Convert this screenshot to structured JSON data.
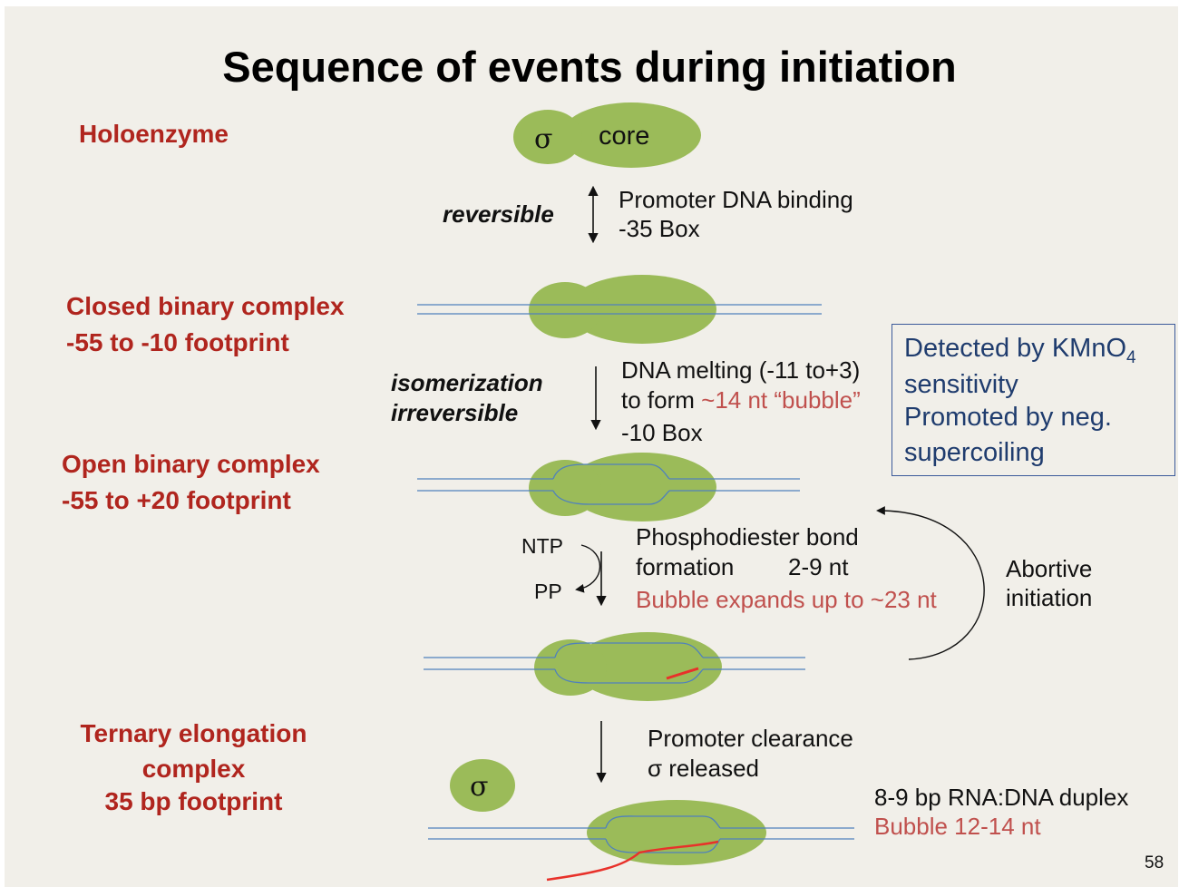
{
  "title": "Sequence of events during initiation",
  "slide_number": "58",
  "stages": {
    "holoenzyme": "Holoenzyme",
    "closed_line1": "Closed binary complex",
    "closed_line2": "-55 to -10 footprint",
    "open_line1": "Open binary complex",
    "open_line2": "-55 to +20 footprint",
    "ternary_line1": "Ternary elongation",
    "ternary_line2": "complex",
    "ternary_line3": "35 bp footprint"
  },
  "enzyme": {
    "sigma": "σ",
    "core": "core",
    "sigma_free": "σ"
  },
  "steps": {
    "step1_side": "reversible",
    "step1_line1": "Promoter DNA binding",
    "step1_line2": "-35 Box",
    "step2_side1": "isomerization",
    "step2_side2": "irreversible",
    "step2_line1": "DNA melting (-11 to+3)",
    "step2_line2a": "to form ",
    "step2_line2b": "~14 nt “bubble”",
    "step2_line3": "-10 Box",
    "ntp": "NTP",
    "pp": "PP",
    "step3_line1": "Phosphodiester bond",
    "step3_line2a": "formation",
    "step3_line2b": "2-9 nt",
    "step3_line3": "Bubble expands up to ~23 nt",
    "abortive_line1": "Abortive",
    "abortive_line2": "initiation",
    "step4_line1": "Promoter clearance",
    "step4_line2": "σ released",
    "duplex": "8-9 bp RNA:DNA duplex",
    "bubble_final": "Bubble 12-14 nt"
  },
  "kmno4_box": {
    "line1": "Detected by KMnO",
    "line1_sub": "4",
    "line2": "sensitivity",
    "line3": "Promoted by neg.",
    "line4": "supercoiling"
  },
  "colors": {
    "enzyme": "#9bbb59",
    "dna": "#4f81bd",
    "rna": "#e8312a",
    "stage_text": "#b0251e",
    "highlight_text": "#c0504d",
    "box_text": "#1f3c6e"
  }
}
